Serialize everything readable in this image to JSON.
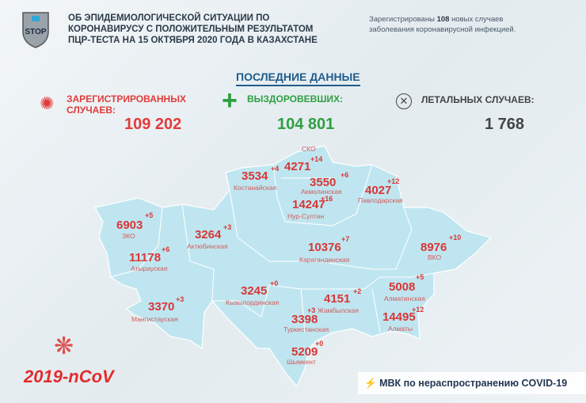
{
  "header": {
    "title_lines": [
      "ОБ ЭПИДЕМИОЛОГИЧЕСКОЙ СИТУАЦИИ ПО",
      "КОРОНАВИРУСУ С ПОЛОЖИТЕЛЬНЫМ РЕЗУЛЬТАТОМ",
      "ПЦР-ТЕСТА НА 15 ОКТЯБРЯ 2020 ГОДА В КАЗАХСТАНЕ"
    ],
    "logo_text": "STOP",
    "note_prefix": "Зарегистрированы",
    "note_count": "108",
    "note_suffix": "новых случаев",
    "note_line2": "заболевания коронавирусной инфекцией."
  },
  "latest_label": "ПОСЛЕДНИЕ ДАННЫЕ",
  "stats": {
    "registered": {
      "label1": "ЗАРЕГИСТРИРОВАННЫХ",
      "label2": "СЛУЧАЕВ:",
      "value": "109 202",
      "color": "#e23b3b"
    },
    "recovered": {
      "label": "ВЫЗДОРОВЕВШИХ:",
      "value": "104 801",
      "color": "#2ea043"
    },
    "deaths": {
      "label": "ЛЕТАЛЬНЫХ СЛУЧАЕВ:",
      "value": "1 768",
      "color": "#444444"
    }
  },
  "regions": [
    {
      "name": "СКО",
      "value": "4271",
      "delta": "+14"
    },
    {
      "name": "Костанайская",
      "value": "3534",
      "delta": "+4"
    },
    {
      "name": "Акмолинская",
      "value": "3550",
      "delta": "+6"
    },
    {
      "name": "Нур-Султан",
      "value": "14247",
      "delta": "+16"
    },
    {
      "name": "Павлодарская",
      "value": "4027",
      "delta": "+12"
    },
    {
      "name": "ЗКО",
      "value": "6903",
      "delta": "+5"
    },
    {
      "name": "Актюбинская",
      "value": "3264",
      "delta": "+3"
    },
    {
      "name": "Карагандинская",
      "value": "10376",
      "delta": "+7"
    },
    {
      "name": "ВКО",
      "value": "8976",
      "delta": "+10"
    },
    {
      "name": "Атырауская",
      "value": "11178",
      "delta": "+6"
    },
    {
      "name": "Кызылординская",
      "value": "3245",
      "delta": "+0"
    },
    {
      "name": "Жамбылская",
      "value": "4151",
      "delta": "+2"
    },
    {
      "name": "Алматинская",
      "value": "5008",
      "delta": "+5"
    },
    {
      "name": "Мангистауская",
      "value": "3370",
      "delta": "+3"
    },
    {
      "name": "Туркестанская",
      "value": "3398",
      "delta": "+3"
    },
    {
      "name": "Алматы",
      "value": "14495",
      "delta": "+12"
    },
    {
      "name": "Шымкент",
      "value": "5209",
      "delta": "+0"
    }
  ],
  "map_color": "#bfe6f0",
  "footer": {
    "ncov": "2019-nCoV",
    "mvk": "МВК по нераспространению COVID-19"
  }
}
